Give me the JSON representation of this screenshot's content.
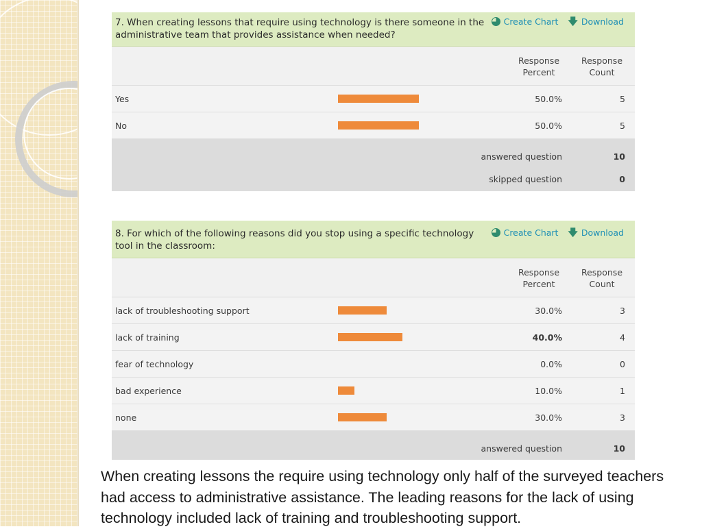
{
  "colors": {
    "bar": "#ee8a3a",
    "header_bg": "#ddebc1",
    "action_link": "#1e8fb5",
    "icon_green": "#2e8b6e"
  },
  "actions": {
    "create_chart": "Create Chart",
    "download": "Download",
    "chart_icon": "pie-chart-icon",
    "download_icon": "down-arrow-icon"
  },
  "columns": {
    "percent": "Response\nPercent",
    "count": "Response\nCount"
  },
  "q7": {
    "title": "7. When creating lessons that require using technology is there someone in the administrative team that provides assistance when needed?",
    "rows": [
      {
        "label": "Yes",
        "percent": 50.0,
        "percent_text": "50.0%",
        "count": "5"
      },
      {
        "label": "No",
        "percent": 50.0,
        "percent_text": "50.0%",
        "count": "5"
      }
    ],
    "answered_label": "answered question",
    "answered_value": "10",
    "skipped_label": "skipped question",
    "skipped_value": "0"
  },
  "q8": {
    "title": "8. For which of the following reasons did you stop using a specific technology tool in the classroom:",
    "rows": [
      {
        "label": "lack of troubleshooting support",
        "percent": 30.0,
        "percent_text": "30.0%",
        "count": "3"
      },
      {
        "label": "lack of training",
        "percent": 40.0,
        "percent_text": "40.0%",
        "count": "4"
      },
      {
        "label": "fear of technology",
        "percent": 0.0,
        "percent_text": "0.0%",
        "count": "0"
      },
      {
        "label": "bad experience",
        "percent": 10.0,
        "percent_text": "10.0%",
        "count": "1"
      },
      {
        "label": "none",
        "percent": 30.0,
        "percent_text": "30.0%",
        "count": "3"
      }
    ],
    "answered_label": "answered question",
    "answered_value": "10"
  },
  "caption": "When creating lessons the require using technology only half of the surveyed teachers had access to administrative assistance. The leading reasons for the lack of using technology included lack of training and troubleshooting support."
}
